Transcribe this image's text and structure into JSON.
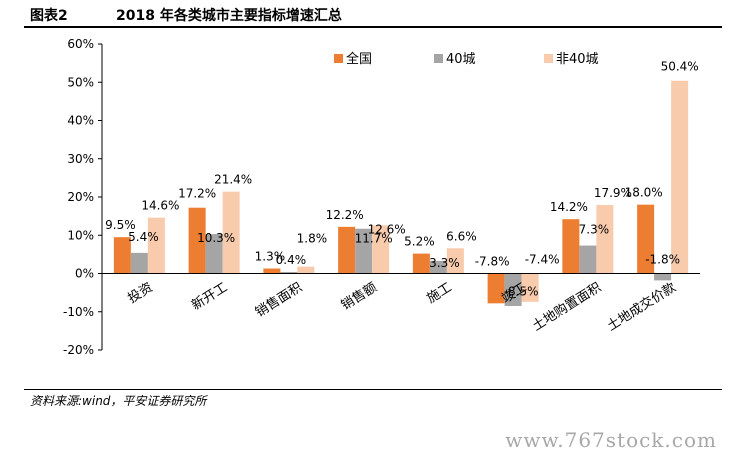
{
  "figure": {
    "label": "图表2",
    "title": "2018 年各类城市主要指标增速汇总",
    "source": "资料来源:wind，平安证券研究所",
    "watermark": "www.767stock.com"
  },
  "chart_data": {
    "type": "bar",
    "categories": [
      "投资",
      "新开工",
      "销售面积",
      "销售额",
      "施工",
      "竣工",
      "土地购置面积",
      "土地成交价款"
    ],
    "series": [
      {
        "name": "全国",
        "color": "#ED7D31",
        "values": [
          9.5,
          17.2,
          1.3,
          12.2,
          5.2,
          -7.8,
          14.2,
          18.0
        ]
      },
      {
        "name": "40城",
        "color": "#A5A5A5",
        "values": [
          5.4,
          10.3,
          0.4,
          11.7,
          3.3,
          -8.5,
          7.3,
          -1.8
        ]
      },
      {
        "name": "非40城",
        "color": "#F8CBAD",
        "values": [
          14.6,
          21.4,
          1.8,
          12.6,
          6.6,
          -7.4,
          17.9,
          50.4
        ]
      }
    ],
    "ylim": [
      -20,
      60
    ],
    "yticks": [
      -20,
      -10,
      0,
      10,
      20,
      30,
      40,
      50,
      60
    ],
    "ytick_labels": [
      "-20%",
      "-10%",
      "0%",
      "10%",
      "20%",
      "30%",
      "40%",
      "50%",
      "60%"
    ],
    "value_labels": [
      [
        "9.5%",
        "17.2%",
        "1.3%",
        "12.2%",
        "5.2%",
        "-7.8%",
        "14.2%",
        "18.0%"
      ],
      [
        "5.4%",
        "10.3%",
        "0.4%",
        "11.7%",
        "3.3%",
        "-8.5%",
        "7.3%",
        "-1.8%"
      ],
      [
        "14.6%",
        "21.4%",
        "1.8%",
        "12.6%",
        "6.6%",
        "-7.4%",
        "17.9%",
        "50.4%"
      ]
    ],
    "legend": "top",
    "grid": false
  }
}
